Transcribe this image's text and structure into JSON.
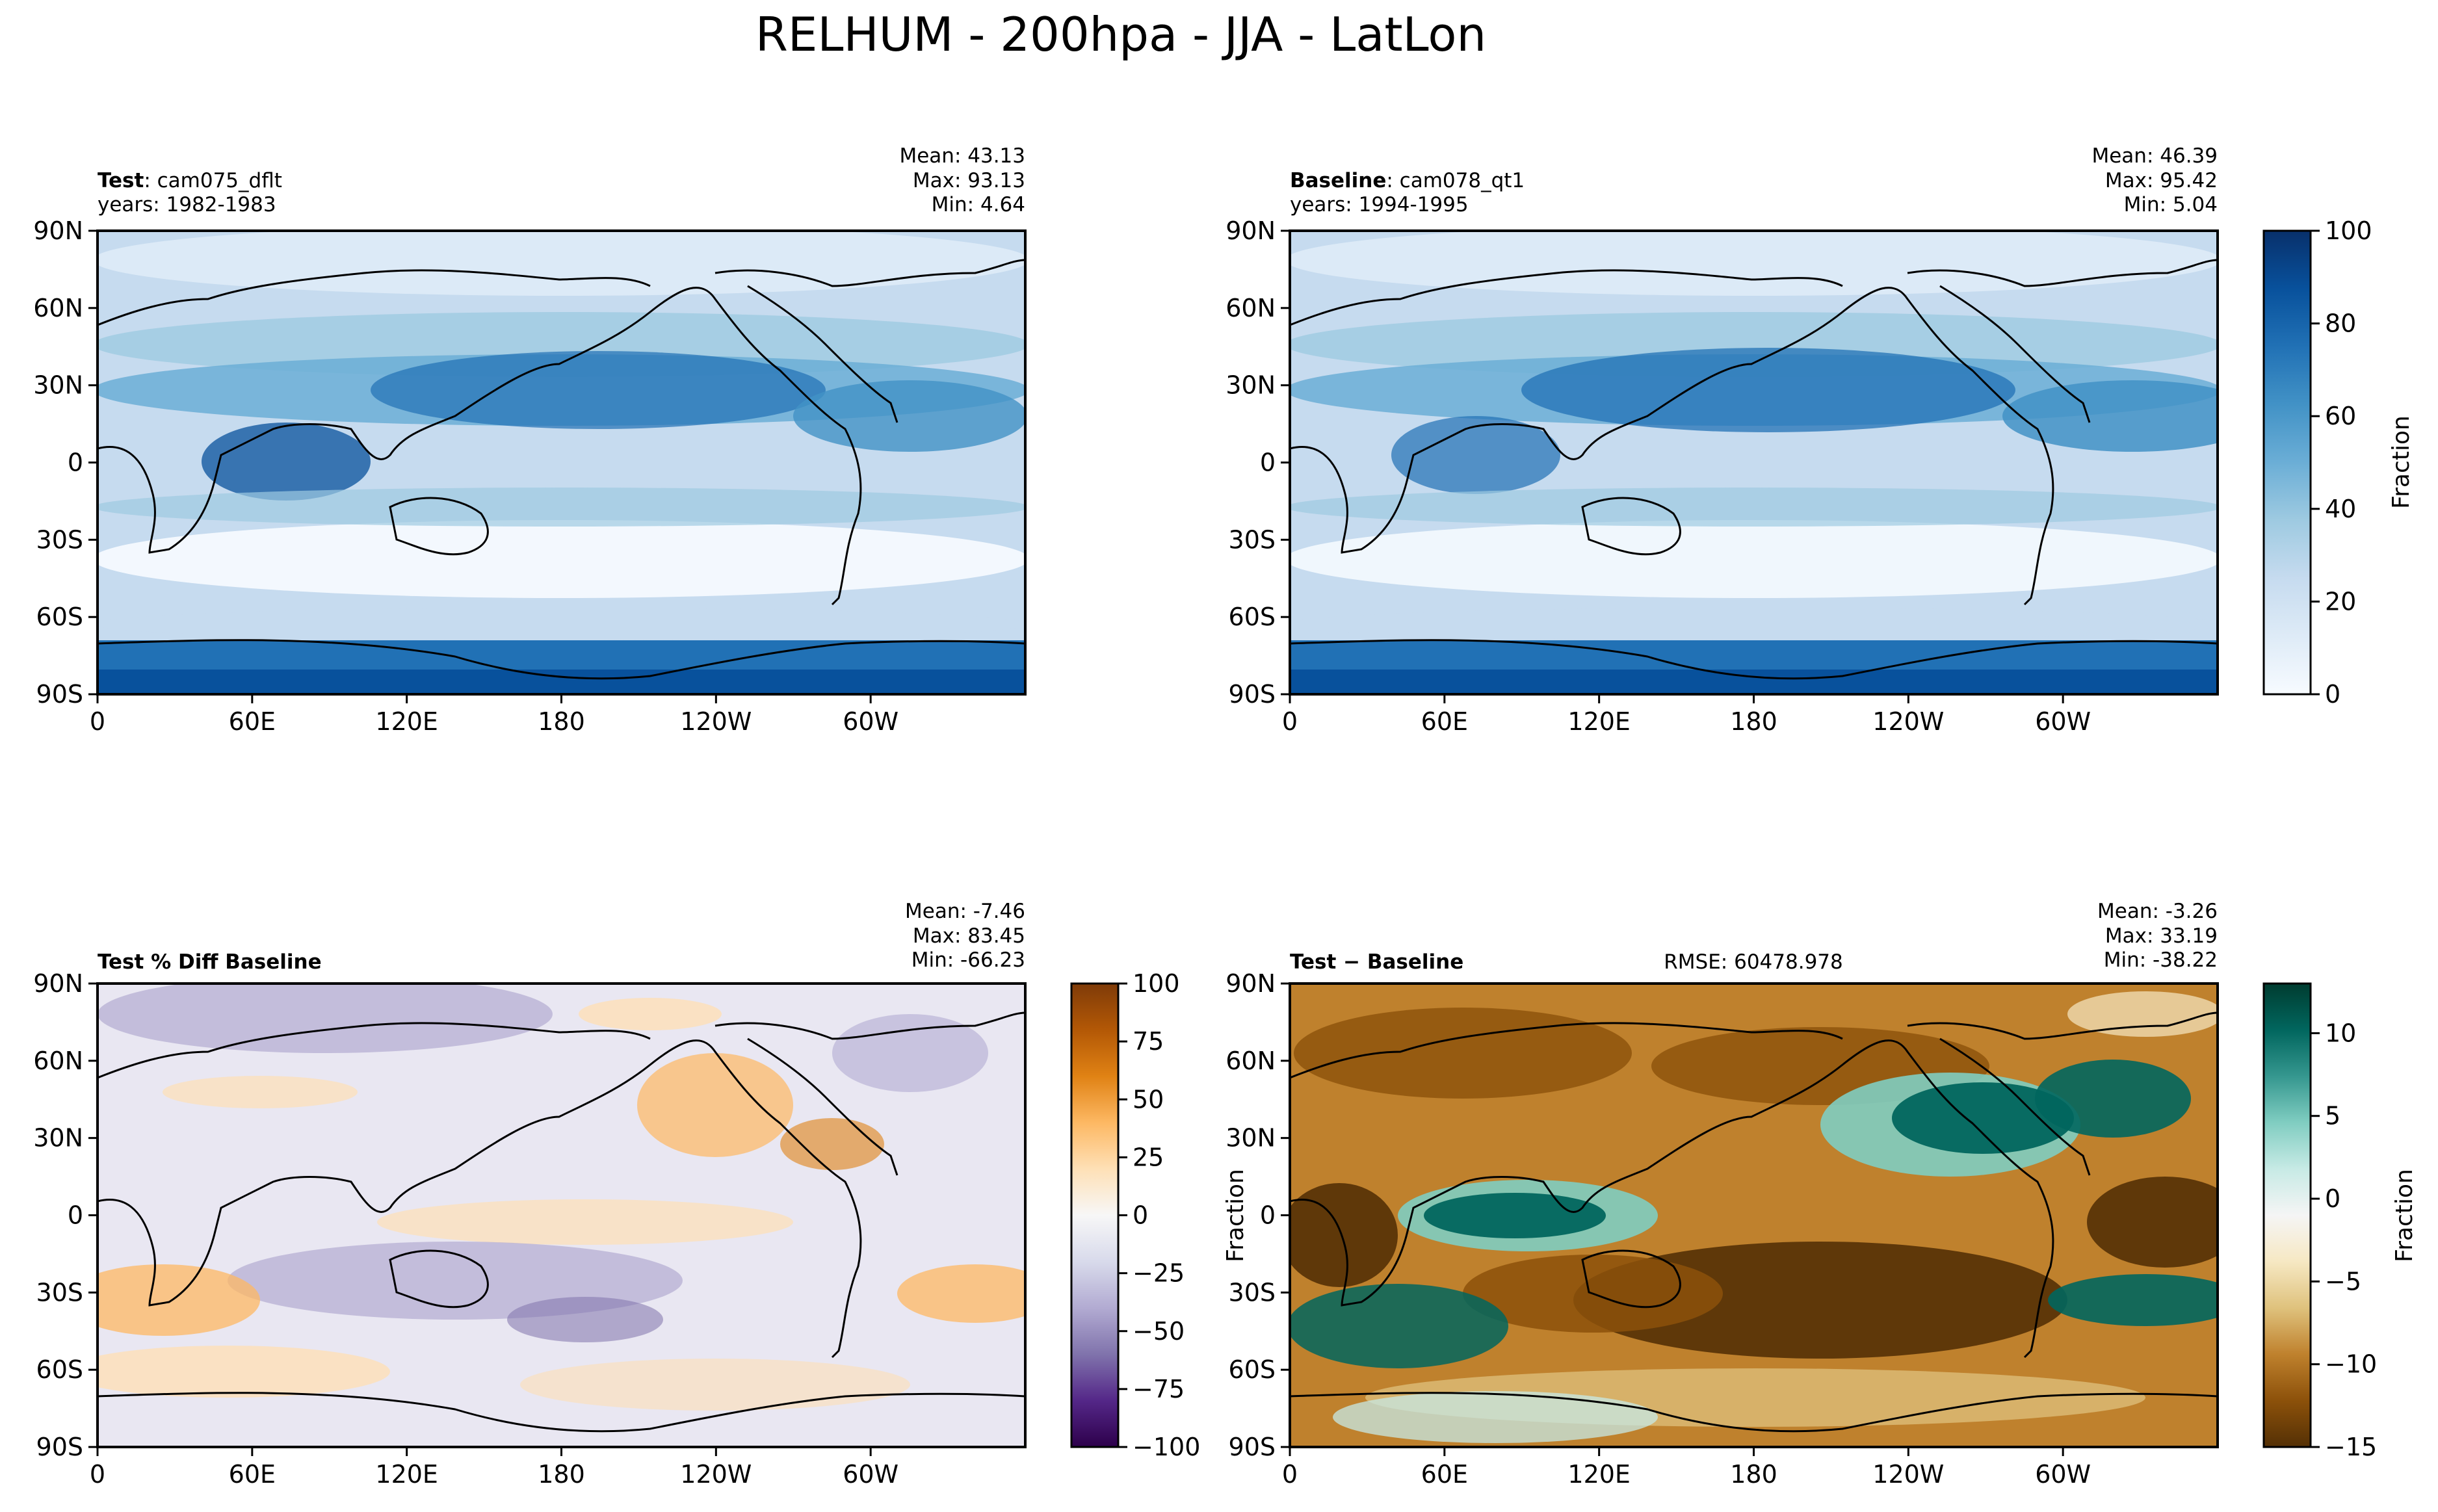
{
  "figure_title": "RELHUM - 200hpa - JJA - LatLon",
  "axis_ticks": {
    "x": [
      "0",
      "60E",
      "120E",
      "180",
      "120W",
      "60W"
    ],
    "y": [
      "90N",
      "60N",
      "30N",
      "0",
      "30S",
      "60S",
      "90S"
    ]
  },
  "panels": [
    {
      "id": "test",
      "label_bold": "Test",
      "label_rest": ": cam075_dflt",
      "label_line2": "years: 1982-1983",
      "stats": [
        "Mean: 43.13",
        "Max: 93.13",
        "Min:  4.64"
      ],
      "center_text": "",
      "colormap": "blues"
    },
    {
      "id": "baseline",
      "label_bold": "Baseline",
      "label_rest": ": cam078_qt1",
      "label_line2": "years: 1994-1995",
      "stats": [
        "Mean: 46.39",
        "Max: 95.42",
        "Min:  5.04"
      ],
      "center_text": "",
      "colormap": "blues"
    },
    {
      "id": "pctdiff",
      "label_bold": "Test % Diff Baseline",
      "label_rest": "",
      "label_line2": "",
      "stats": [
        "Mean: -7.46",
        "Max: 83.45",
        "Min: -66.23"
      ],
      "center_text": "",
      "colormap": "puor"
    },
    {
      "id": "diff",
      "label_bold": "Test − Baseline",
      "label_rest": "",
      "label_line2": "",
      "stats": [
        "Mean: -3.26",
        "Max: 33.19",
        "Min: -38.22"
      ],
      "center_text": "RMSE: 60478.978",
      "colormap": "brbg"
    }
  ],
  "colorbars": [
    {
      "id": "cb-main",
      "label": "Fraction",
      "ticks": [
        "0",
        "20",
        "40",
        "60",
        "80",
        "100"
      ]
    },
    {
      "id": "cb-pct",
      "label": "Fraction",
      "ticks": [
        "−100",
        "−75",
        "−50",
        "−25",
        "0",
        "25",
        "50",
        "75",
        "100"
      ]
    },
    {
      "id": "cb-diff",
      "label": "Fraction",
      "ticks": [
        "−15",
        "−10",
        "−5",
        "0",
        "5",
        "10"
      ]
    }
  ],
  "chart_data": [
    {
      "type": "heatmap",
      "panel": "test",
      "xlabel": "",
      "ylabel": "",
      "x_range": [
        "0",
        "360"
      ],
      "y_range": [
        -90,
        90
      ],
      "colorbar_range": [
        0,
        100
      ]
    },
    {
      "type": "heatmap",
      "panel": "baseline",
      "xlabel": "",
      "ylabel": "",
      "x_range": [
        "0",
        "360"
      ],
      "y_range": [
        -90,
        90
      ],
      "colorbar_range": [
        0,
        100
      ]
    },
    {
      "type": "heatmap",
      "panel": "pctdiff",
      "xlabel": "",
      "ylabel": "",
      "x_range": [
        "0",
        "360"
      ],
      "y_range": [
        -90,
        90
      ],
      "colorbar_range": [
        -100,
        100
      ]
    },
    {
      "type": "heatmap",
      "panel": "diff",
      "xlabel": "",
      "ylabel": "",
      "x_range": [
        "0",
        "360"
      ],
      "y_range": [
        -90,
        90
      ],
      "colorbar_range": [
        -15,
        13
      ]
    }
  ],
  "colors": {
    "blues": [
      "#f7fbff",
      "#deebf7",
      "#c6dbef",
      "#9ecae1",
      "#6baed6",
      "#4292c6",
      "#2171b5",
      "#08519c",
      "#08306b"
    ],
    "puor": [
      "#2d004b",
      "#542788",
      "#8073ac",
      "#b2abd2",
      "#d8daeb",
      "#f7f7f7",
      "#fee0b6",
      "#fdb863",
      "#e08214",
      "#b35806",
      "#7f3b08"
    ],
    "brbg": [
      "#543005",
      "#8c510a",
      "#bf812d",
      "#dfc27d",
      "#f6e8c3",
      "#f5f5f5",
      "#c7eae5",
      "#80cdc1",
      "#35978f",
      "#01665e",
      "#003c30"
    ]
  }
}
